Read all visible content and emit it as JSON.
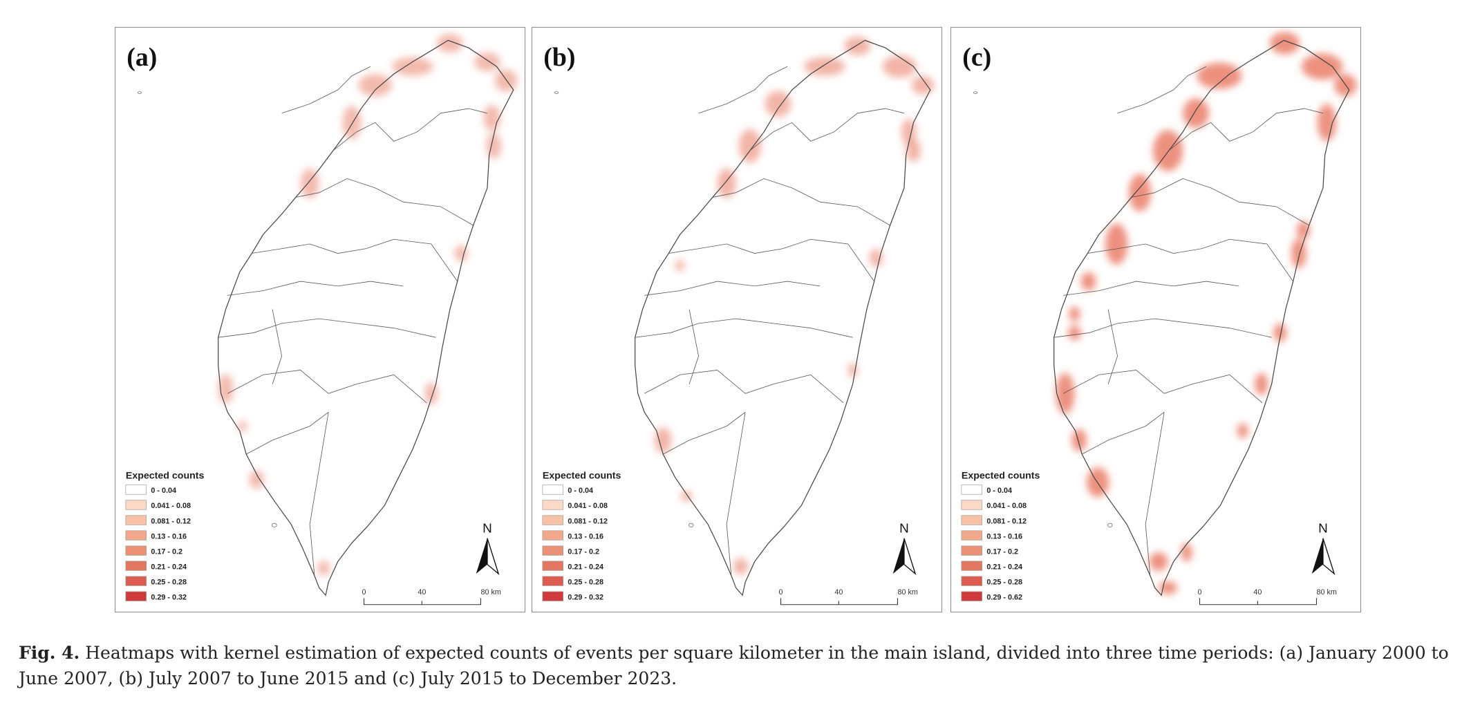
{
  "panels": [
    {
      "label": "(a)",
      "legend": {
        "title": "Expected counts",
        "items": [
          "0 - 0.04",
          "0.041 - 0.08",
          "0.081 - 0.12",
          "0.13 - 0.16",
          "0.17 - 0.2",
          "0.21 - 0.24",
          "0.25 - 0.28",
          "0.29 - 0.32"
        ]
      },
      "scale": [
        "0",
        "40",
        "80 km"
      ],
      "north": "N"
    },
    {
      "label": "(b)",
      "legend": {
        "title": "Expected counts",
        "items": [
          "0 - 0.04",
          "0.041 - 0.08",
          "0.081 - 0.12",
          "0.13 - 0.16",
          "0.17 - 0.2",
          "0.21 - 0.24",
          "0.25 - 0.28",
          "0.29 - 0.32"
        ]
      },
      "scale": [
        "0",
        "40",
        "80 km"
      ],
      "north": "N"
    },
    {
      "label": "(c)",
      "legend": {
        "title": "Expected counts",
        "items": [
          "0 - 0.04",
          "0.041 - 0.08",
          "0.081 - 0.12",
          "0.13 - 0.16",
          "0.17 - 0.2",
          "0.21 - 0.24",
          "0.25 - 0.28",
          "0.29 - 0.62"
        ]
      },
      "scale": [
        "0",
        "40",
        "80 km"
      ],
      "north": "N"
    }
  ],
  "caption": {
    "label": "Fig. 4.",
    "text": "Heatmaps with kernel estimation of expected counts of events per square kilometer in the main island, divided into three time periods: (a) January 2000 to June 2007, (b) July 2007 to June 2015 and (c) July 2015 to December 2023."
  }
}
